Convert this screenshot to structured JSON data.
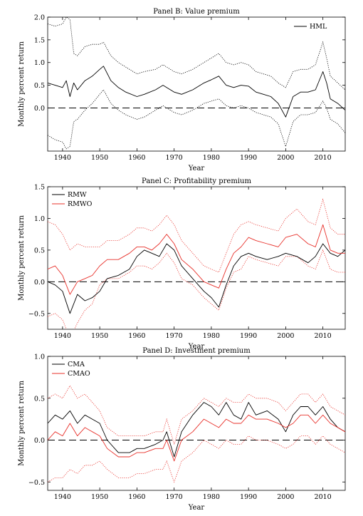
{
  "chart_data": [
    {
      "type": "line",
      "title": "Panel B: Value premium",
      "xlabel": "Year",
      "ylabel": "Monthly percent return",
      "xlim": [
        1936,
        2016
      ],
      "ylim": [
        -0.95,
        2.0
      ],
      "xticks": [
        1940,
        1950,
        1960,
        1970,
        1980,
        1990,
        2000,
        2010
      ],
      "yticks": [
        0.0,
        0.5,
        1.0,
        1.5,
        2.0
      ],
      "ytick_labels": [
        "0.0",
        "0.5",
        "1.0",
        "1.5",
        "2.0"
      ],
      "zero_line": "dashed",
      "legend": "top-right",
      "series": [
        {
          "name": "HML",
          "color": "#000000",
          "x": [
            1936,
            1938,
            1940,
            1941,
            1942,
            1943,
            1944,
            1946,
            1948,
            1950,
            1951,
            1953,
            1955,
            1957,
            1960,
            1962,
            1965,
            1967,
            1970,
            1972,
            1975,
            1978,
            1980,
            1982,
            1984,
            1986,
            1988,
            1990,
            1992,
            1994,
            1996,
            1998,
            2000,
            2002,
            2004,
            2006,
            2008,
            2010,
            2011,
            2012,
            2014,
            2016
          ],
          "y": [
            0.55,
            0.5,
            0.45,
            0.6,
            0.25,
            0.55,
            0.4,
            0.6,
            0.7,
            0.85,
            0.92,
            0.6,
            0.45,
            0.35,
            0.25,
            0.3,
            0.4,
            0.5,
            0.35,
            0.3,
            0.4,
            0.55,
            0.62,
            0.7,
            0.5,
            0.45,
            0.5,
            0.48,
            0.35,
            0.3,
            0.25,
            0.1,
            -0.2,
            0.25,
            0.35,
            0.35,
            0.4,
            0.8,
            0.55,
            0.2,
            0.1,
            -0.05
          ]
        }
      ],
      "bands": [
        {
          "color": "#000000",
          "x": [
            1936,
            1938,
            1940,
            1941,
            1942,
            1943,
            1944,
            1946,
            1948,
            1950,
            1951,
            1953,
            1955,
            1957,
            1960,
            1962,
            1965,
            1967,
            1970,
            1972,
            1975,
            1978,
            1980,
            1982,
            1984,
            1986,
            1988,
            1990,
            1992,
            1994,
            1996,
            1998,
            2000,
            2002,
            2004,
            2006,
            2008,
            2010,
            2011,
            2012,
            2014,
            2016
          ],
          "upper": [
            1.85,
            1.8,
            1.85,
            2.0,
            1.95,
            1.2,
            1.15,
            1.35,
            1.4,
            1.4,
            1.45,
            1.15,
            1.0,
            0.9,
            0.75,
            0.8,
            0.85,
            0.95,
            0.8,
            0.75,
            0.85,
            1.0,
            1.1,
            1.2,
            1.0,
            0.95,
            1.0,
            0.95,
            0.8,
            0.75,
            0.7,
            0.55,
            0.45,
            0.8,
            0.85,
            0.85,
            0.95,
            1.45,
            1.1,
            0.7,
            0.55,
            0.4
          ],
          "lower": [
            -0.6,
            -0.7,
            -0.75,
            -0.9,
            -0.85,
            -0.3,
            -0.25,
            -0.05,
            0.1,
            0.3,
            0.4,
            0.1,
            -0.05,
            -0.15,
            -0.25,
            -0.2,
            -0.05,
            0.05,
            -0.1,
            -0.15,
            -0.05,
            0.1,
            0.15,
            0.2,
            0.05,
            0.0,
            0.05,
            0.0,
            -0.1,
            -0.15,
            -0.2,
            -0.35,
            -0.85,
            -0.3,
            -0.15,
            -0.15,
            -0.1,
            0.15,
            0.0,
            -0.25,
            -0.35,
            -0.55
          ]
        }
      ]
    },
    {
      "type": "line",
      "title": "Panel C: Profitability premium",
      "xlabel": "Year",
      "ylabel": "Monthly percent return",
      "xlim": [
        1936,
        2016
      ],
      "ylim": [
        -0.75,
        1.5
      ],
      "xticks": [
        1940,
        1950,
        1960,
        1970,
        1980,
        1990,
        2000,
        2010
      ],
      "yticks": [
        -0.5,
        0.0,
        0.5,
        1.0,
        1.5
      ],
      "ytick_labels": [
        "−0.5",
        "0.0",
        "0.5",
        "1.0",
        "1.5"
      ],
      "zero_line": "dashed",
      "legend": "top-left",
      "series": [
        {
          "name": "RMW",
          "color": "#000000",
          "x": [
            1936,
            1938,
            1940,
            1942,
            1944,
            1946,
            1948,
            1950,
            1952,
            1955,
            1958,
            1960,
            1962,
            1964,
            1966,
            1968,
            1970,
            1972,
            1975,
            1978,
            1980,
            1982,
            1984,
            1986,
            1988,
            1990,
            1992,
            1995,
            1998,
            2000,
            2003,
            2006,
            2008,
            2010,
            2012,
            2014,
            2016
          ],
          "y": [
            0.0,
            -0.05,
            -0.15,
            -0.5,
            -0.2,
            -0.3,
            -0.25,
            -0.15,
            0.05,
            0.1,
            0.2,
            0.4,
            0.5,
            0.45,
            0.4,
            0.6,
            0.5,
            0.25,
            0.05,
            -0.15,
            -0.25,
            -0.4,
            -0.05,
            0.25,
            0.4,
            0.45,
            0.4,
            0.35,
            0.4,
            0.45,
            0.4,
            0.3,
            0.4,
            0.6,
            0.45,
            0.4,
            0.5
          ]
        },
        {
          "name": "RMWO",
          "color": "#e8302a",
          "x": [
            1936,
            1938,
            1940,
            1942,
            1944,
            1946,
            1948,
            1950,
            1952,
            1955,
            1958,
            1960,
            1962,
            1964,
            1966,
            1968,
            1970,
            1972,
            1975,
            1978,
            1980,
            1982,
            1984,
            1986,
            1988,
            1990,
            1992,
            1995,
            1998,
            2000,
            2003,
            2006,
            2008,
            2010,
            2012,
            2014,
            2016
          ],
          "y": [
            0.2,
            0.25,
            0.1,
            -0.2,
            0.0,
            0.05,
            0.1,
            0.25,
            0.35,
            0.35,
            0.45,
            0.55,
            0.55,
            0.5,
            0.6,
            0.75,
            0.6,
            0.35,
            0.2,
            0.0,
            -0.05,
            -0.1,
            0.2,
            0.45,
            0.55,
            0.7,
            0.65,
            0.6,
            0.55,
            0.7,
            0.75,
            0.6,
            0.55,
            0.9,
            0.5,
            0.45,
            0.45
          ]
        }
      ],
      "bands": [
        {
          "color": "#e8302a",
          "x": [
            1936,
            1938,
            1940,
            1942,
            1944,
            1946,
            1948,
            1950,
            1952,
            1955,
            1958,
            1960,
            1962,
            1964,
            1966,
            1968,
            1970,
            1972,
            1975,
            1978,
            1980,
            1982,
            1984,
            1986,
            1988,
            1990,
            1992,
            1995,
            1998,
            2000,
            2003,
            2006,
            2008,
            2010,
            2012,
            2014,
            2016
          ],
          "upper": [
            0.95,
            0.9,
            0.75,
            0.5,
            0.6,
            0.55,
            0.55,
            0.55,
            0.65,
            0.65,
            0.75,
            0.85,
            0.85,
            0.8,
            0.9,
            1.05,
            0.9,
            0.65,
            0.45,
            0.25,
            0.2,
            0.15,
            0.45,
            0.75,
            0.9,
            0.95,
            0.9,
            0.85,
            0.8,
            1.0,
            1.15,
            0.95,
            0.9,
            1.3,
            0.85,
            0.75,
            0.75
          ],
          "lower": [
            -0.55,
            -0.5,
            -0.6,
            -0.9,
            -0.65,
            -0.45,
            -0.35,
            -0.05,
            0.05,
            0.05,
            0.15,
            0.25,
            0.25,
            0.2,
            0.3,
            0.45,
            0.3,
            0.05,
            -0.05,
            -0.25,
            -0.35,
            -0.45,
            -0.1,
            0.15,
            0.2,
            0.4,
            0.35,
            0.3,
            0.25,
            0.4,
            0.4,
            0.25,
            0.2,
            0.5,
            0.2,
            0.15,
            0.15
          ]
        }
      ]
    },
    {
      "type": "line",
      "title": "Panel D: Investment premium",
      "xlabel": "Year",
      "ylabel": "Monthly percent return",
      "xlim": [
        1936,
        2016
      ],
      "ylim": [
        -0.6,
        1.0
      ],
      "xticks": [
        1940,
        1950,
        1960,
        1970,
        1980,
        1990,
        2000,
        2010
      ],
      "yticks": [
        -0.5,
        0.0,
        0.5,
        1.0
      ],
      "ytick_labels": [
        "−0.5",
        "0.0",
        "0.5",
        "1.0"
      ],
      "zero_line": "dashed",
      "legend": "top-left",
      "series": [
        {
          "name": "CMA",
          "color": "#000000",
          "x": [
            1936,
            1938,
            1940,
            1942,
            1944,
            1946,
            1948,
            1950,
            1952,
            1955,
            1958,
            1960,
            1962,
            1965,
            1967,
            1968,
            1970,
            1972,
            1975,
            1978,
            1980,
            1982,
            1984,
            1986,
            1988,
            1990,
            1992,
            1995,
            1998,
            2000,
            2002,
            2004,
            2006,
            2008,
            2010,
            2012,
            2014,
            2016
          ],
          "y": [
            0.2,
            0.3,
            0.25,
            0.35,
            0.2,
            0.3,
            0.25,
            0.2,
            0.0,
            -0.15,
            -0.15,
            -0.1,
            -0.1,
            -0.05,
            0.0,
            0.1,
            -0.2,
            0.1,
            0.3,
            0.45,
            0.4,
            0.3,
            0.45,
            0.3,
            0.25,
            0.45,
            0.3,
            0.35,
            0.25,
            0.1,
            0.3,
            0.4,
            0.4,
            0.3,
            0.4,
            0.25,
            0.15,
            0.1
          ]
        },
        {
          "name": "CMAO",
          "color": "#e8302a",
          "x": [
            1936,
            1938,
            1940,
            1942,
            1944,
            1946,
            1948,
            1950,
            1952,
            1955,
            1958,
            1960,
            1962,
            1965,
            1967,
            1968,
            1970,
            1972,
            1975,
            1978,
            1980,
            1982,
            1984,
            1986,
            1988,
            1990,
            1992,
            1995,
            1998,
            2000,
            2002,
            2004,
            2006,
            2008,
            2010,
            2012,
            2014,
            2016
          ],
          "y": [
            0.0,
            0.1,
            0.05,
            0.2,
            0.05,
            0.15,
            0.1,
            0.05,
            -0.1,
            -0.2,
            -0.2,
            -0.15,
            -0.15,
            -0.1,
            -0.1,
            0.0,
            -0.25,
            0.0,
            0.1,
            0.25,
            0.2,
            0.15,
            0.25,
            0.2,
            0.2,
            0.3,
            0.25,
            0.25,
            0.2,
            0.15,
            0.2,
            0.3,
            0.3,
            0.2,
            0.3,
            0.2,
            0.15,
            0.1
          ]
        }
      ],
      "bands": [
        {
          "color": "#e8302a",
          "x": [
            1936,
            1938,
            1940,
            1942,
            1944,
            1946,
            1948,
            1950,
            1952,
            1955,
            1958,
            1960,
            1962,
            1965,
            1967,
            1968,
            1970,
            1972,
            1975,
            1978,
            1980,
            1982,
            1984,
            1986,
            1988,
            1990,
            1992,
            1995,
            1998,
            2000,
            2002,
            2004,
            2006,
            2008,
            2010,
            2012,
            2014,
            2016
          ],
          "upper": [
            0.5,
            0.55,
            0.5,
            0.65,
            0.5,
            0.55,
            0.45,
            0.35,
            0.15,
            0.05,
            0.05,
            0.05,
            0.05,
            0.1,
            0.1,
            0.25,
            -0.05,
            0.25,
            0.35,
            0.5,
            0.45,
            0.4,
            0.5,
            0.45,
            0.45,
            0.55,
            0.5,
            0.5,
            0.45,
            0.35,
            0.45,
            0.55,
            0.55,
            0.45,
            0.55,
            0.4,
            0.35,
            0.3
          ],
          "lower": [
            -0.5,
            -0.45,
            -0.45,
            -0.35,
            -0.4,
            -0.3,
            -0.3,
            -0.25,
            -0.35,
            -0.45,
            -0.45,
            -0.4,
            -0.4,
            -0.35,
            -0.35,
            -0.25,
            -0.5,
            -0.25,
            -0.15,
            0.0,
            -0.05,
            -0.1,
            0.0,
            -0.05,
            -0.05,
            0.05,
            0.0,
            0.0,
            -0.05,
            -0.1,
            -0.05,
            0.05,
            0.05,
            -0.05,
            0.05,
            -0.05,
            -0.1,
            -0.15
          ]
        }
      ]
    }
  ]
}
